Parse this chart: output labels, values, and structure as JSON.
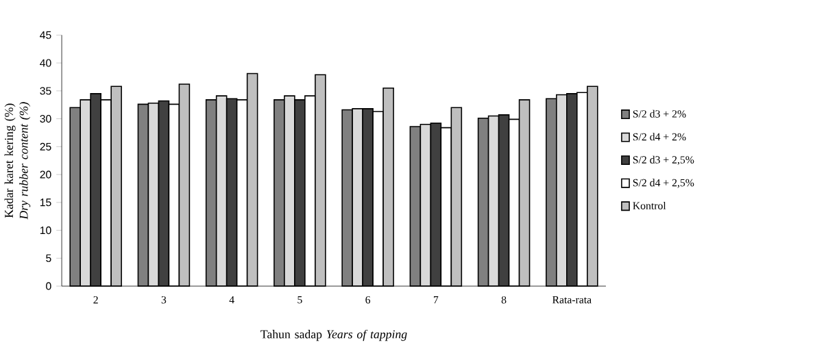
{
  "chart_data": {
    "type": "bar",
    "xlabel": "Tahun sadap *Years of tapping*",
    "ylabel": "Kadar karet kering (%) *Dry rubber content (%)*",
    "categories": [
      "2",
      "3",
      "4",
      "5",
      "6",
      "7",
      "8",
      "Rata-rata"
    ],
    "series": [
      {
        "name": "S/2 d3 + 2%",
        "color": "#808080",
        "values": [
          32.0,
          32.6,
          33.4,
          33.4,
          31.6,
          28.6,
          30.1,
          33.6
        ]
      },
      {
        "name": "S/2 d4 + 2%",
        "color": "#d9d9d9",
        "values": [
          33.4,
          32.8,
          34.1,
          34.1,
          31.8,
          29.0,
          30.5,
          34.3
        ]
      },
      {
        "name": "S/2 d3 + 2,5%",
        "color": "#404040",
        "values": [
          34.5,
          33.2,
          33.6,
          33.4,
          31.8,
          29.2,
          30.7,
          34.5
        ]
      },
      {
        "name": "S/2 d4 + 2,5%",
        "color": "#ffffff",
        "values": [
          33.4,
          32.6,
          33.4,
          34.1,
          31.3,
          28.4,
          29.9,
          34.7
        ]
      },
      {
        "name": "Kontrol",
        "color": "#bfbfbf",
        "values": [
          35.8,
          36.2,
          38.1,
          37.9,
          35.5,
          32.0,
          33.4,
          35.8
        ]
      }
    ],
    "ylim": [
      0,
      45
    ],
    "yticks": [
      0,
      5,
      10,
      15,
      20,
      25,
      30,
      35,
      40,
      45
    ],
    "grid": false,
    "legend": "right"
  }
}
